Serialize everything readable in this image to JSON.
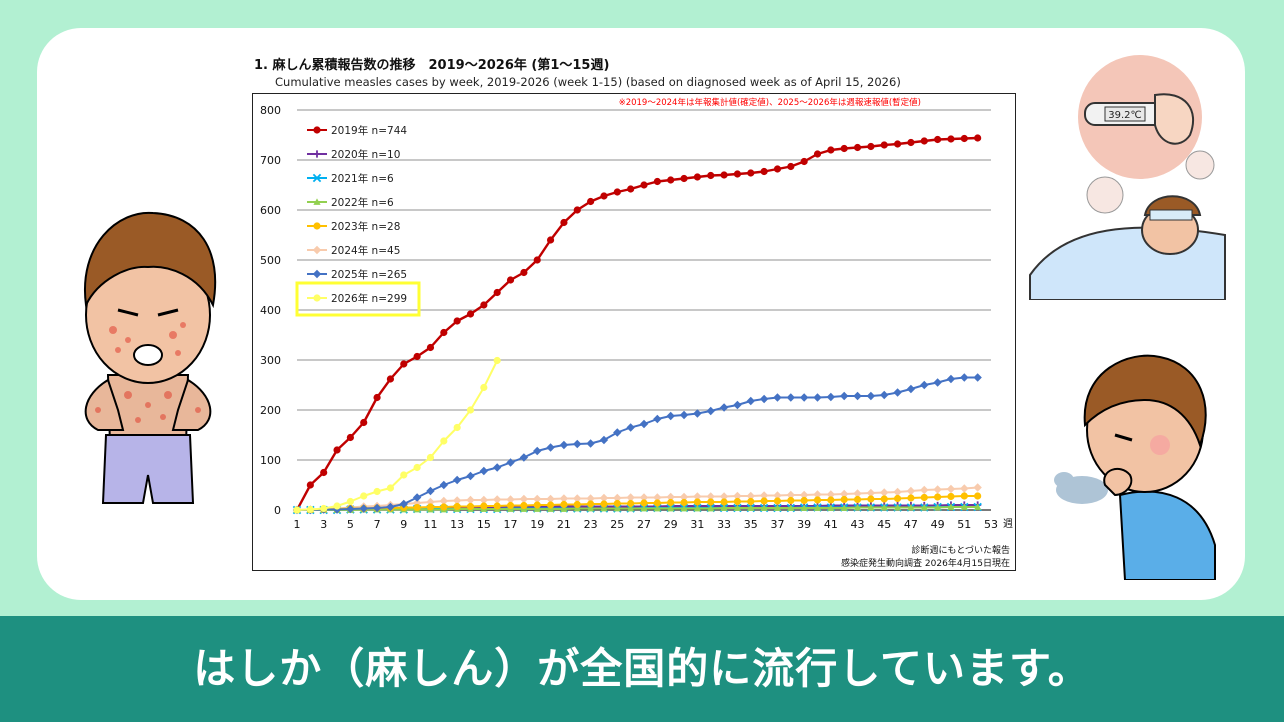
{
  "banner": {
    "text": "はしか（麻しん）が全国的に流行しています。"
  },
  "chart_data": {
    "type": "line",
    "title": "1. 麻しん累積報告数の推移　2019～2026年 (第1～15週)",
    "subtitle": "Cumulative measles cases by week, 2019-2026 (week 1-15)  (based on diagnosed week as of April 15, 2026)",
    "note": "※2019～2024年は年報集計値(確定値)、2025～2026年は週報速報値(暫定値)",
    "xlabel": "週",
    "ylabel": "",
    "ylim": [
      0,
      800
    ],
    "xlim": [
      1,
      53
    ],
    "y_ticks": [
      "0",
      "100",
      "200",
      "300",
      "400",
      "500",
      "600",
      "700",
      "800"
    ],
    "x_ticks": [
      "1",
      "3",
      "5",
      "7",
      "9",
      "11",
      "13",
      "15",
      "17",
      "19",
      "21",
      "23",
      "25",
      "27",
      "29",
      "31",
      "33",
      "35",
      "37",
      "39",
      "41",
      "43",
      "45",
      "47",
      "49",
      "51",
      "53"
    ],
    "source_line1": "診断週にもとづいた報告",
    "source_line2": "感染症発生動向調査 2026年4月15日現在",
    "highlight_label": "2026年 n=299",
    "series": [
      {
        "name": "2019年 n=744",
        "color": "#c00000",
        "marker": "circle",
        "values": [
          0,
          50,
          75,
          120,
          145,
          175,
          225,
          262,
          292,
          307,
          325,
          355,
          378,
          392,
          410,
          435,
          460,
          475,
          500,
          540,
          575,
          600,
          617,
          628,
          636,
          642,
          650,
          657,
          660,
          663,
          666,
          669,
          670,
          672,
          674,
          677,
          682,
          687,
          697,
          712,
          720,
          723,
          725,
          727,
          730,
          732,
          735,
          738,
          741,
          742,
          743,
          744
        ]
      },
      {
        "name": "2020年 n=10",
        "color": "#7030a0",
        "marker": "plus",
        "values": [
          0,
          0,
          1,
          1,
          2,
          2,
          3,
          3,
          4,
          4,
          5,
          5,
          5,
          5,
          6,
          6,
          6,
          6,
          6,
          7,
          7,
          7,
          7,
          7,
          7,
          7,
          7,
          7,
          8,
          8,
          8,
          8,
          8,
          8,
          8,
          8,
          8,
          8,
          8,
          8,
          9,
          9,
          9,
          9,
          9,
          9,
          9,
          9,
          9,
          10,
          10,
          10
        ]
      },
      {
        "name": "2021年 n=6",
        "color": "#00b0f0",
        "marker": "x",
        "values": [
          0,
          0,
          0,
          0,
          1,
          1,
          1,
          1,
          1,
          2,
          2,
          2,
          2,
          2,
          2,
          2,
          3,
          3,
          3,
          3,
          3,
          3,
          3,
          3,
          3,
          3,
          4,
          4,
          4,
          4,
          4,
          4,
          4,
          4,
          4,
          4,
          4,
          4,
          5,
          5,
          5,
          5,
          5,
          5,
          5,
          5,
          5,
          5,
          6,
          6,
          6,
          6
        ]
      },
      {
        "name": "2022年 n=6",
        "color": "#92d050",
        "marker": "triangle",
        "values": [
          0,
          0,
          0,
          0,
          0,
          1,
          1,
          1,
          1,
          1,
          1,
          1,
          2,
          2,
          2,
          2,
          2,
          2,
          2,
          2,
          2,
          3,
          3,
          3,
          3,
          3,
          3,
          3,
          3,
          3,
          3,
          3,
          4,
          4,
          4,
          4,
          4,
          4,
          4,
          4,
          4,
          4,
          5,
          5,
          5,
          5,
          5,
          5,
          5,
          6,
          6,
          6
        ]
      },
      {
        "name": "2023年 n=28",
        "color": "#ffc000",
        "marker": "circle",
        "values": [
          0,
          0,
          1,
          2,
          3,
          3,
          4,
          4,
          5,
          5,
          6,
          6,
          7,
          7,
          8,
          8,
          9,
          9,
          10,
          10,
          11,
          11,
          12,
          12,
          13,
          13,
          14,
          14,
          15,
          15,
          16,
          16,
          16,
          17,
          17,
          18,
          18,
          19,
          19,
          20,
          20,
          21,
          21,
          22,
          22,
          23,
          24,
          25,
          26,
          27,
          28,
          28
        ]
      },
      {
        "name": "2024年 n=45",
        "color": "#f8cbad",
        "marker": "diamond",
        "values": [
          0,
          1,
          2,
          3,
          5,
          7,
          8,
          10,
          12,
          14,
          16,
          18,
          19,
          20,
          20,
          21,
          21,
          22,
          22,
          22,
          23,
          23,
          23,
          24,
          24,
          25,
          25,
          25,
          26,
          26,
          27,
          27,
          27,
          28,
          28,
          29,
          29,
          30,
          30,
          31,
          31,
          32,
          33,
          34,
          35,
          36,
          38,
          40,
          41,
          42,
          43,
          45
        ]
      },
      {
        "name": "2025年 n=265",
        "color": "#4472c4",
        "marker": "diamond",
        "values": [
          0,
          0,
          1,
          1,
          2,
          3,
          4,
          6,
          12,
          25,
          38,
          50,
          60,
          68,
          78,
          85,
          95,
          105,
          118,
          125,
          130,
          132,
          133,
          140,
          155,
          165,
          172,
          182,
          188,
          190,
          193,
          198,
          205,
          210,
          218,
          222,
          225,
          225,
          225,
          225,
          226,
          228,
          228,
          228,
          230,
          235,
          242,
          250,
          255,
          262,
          265,
          265
        ]
      },
      {
        "name": "2026年 n=299",
        "color": "#ffff66",
        "marker": "circle",
        "values": [
          0,
          1,
          3,
          8,
          17,
          28,
          37,
          44,
          70,
          85,
          105,
          138,
          165,
          200,
          245,
          299
        ]
      }
    ]
  }
}
